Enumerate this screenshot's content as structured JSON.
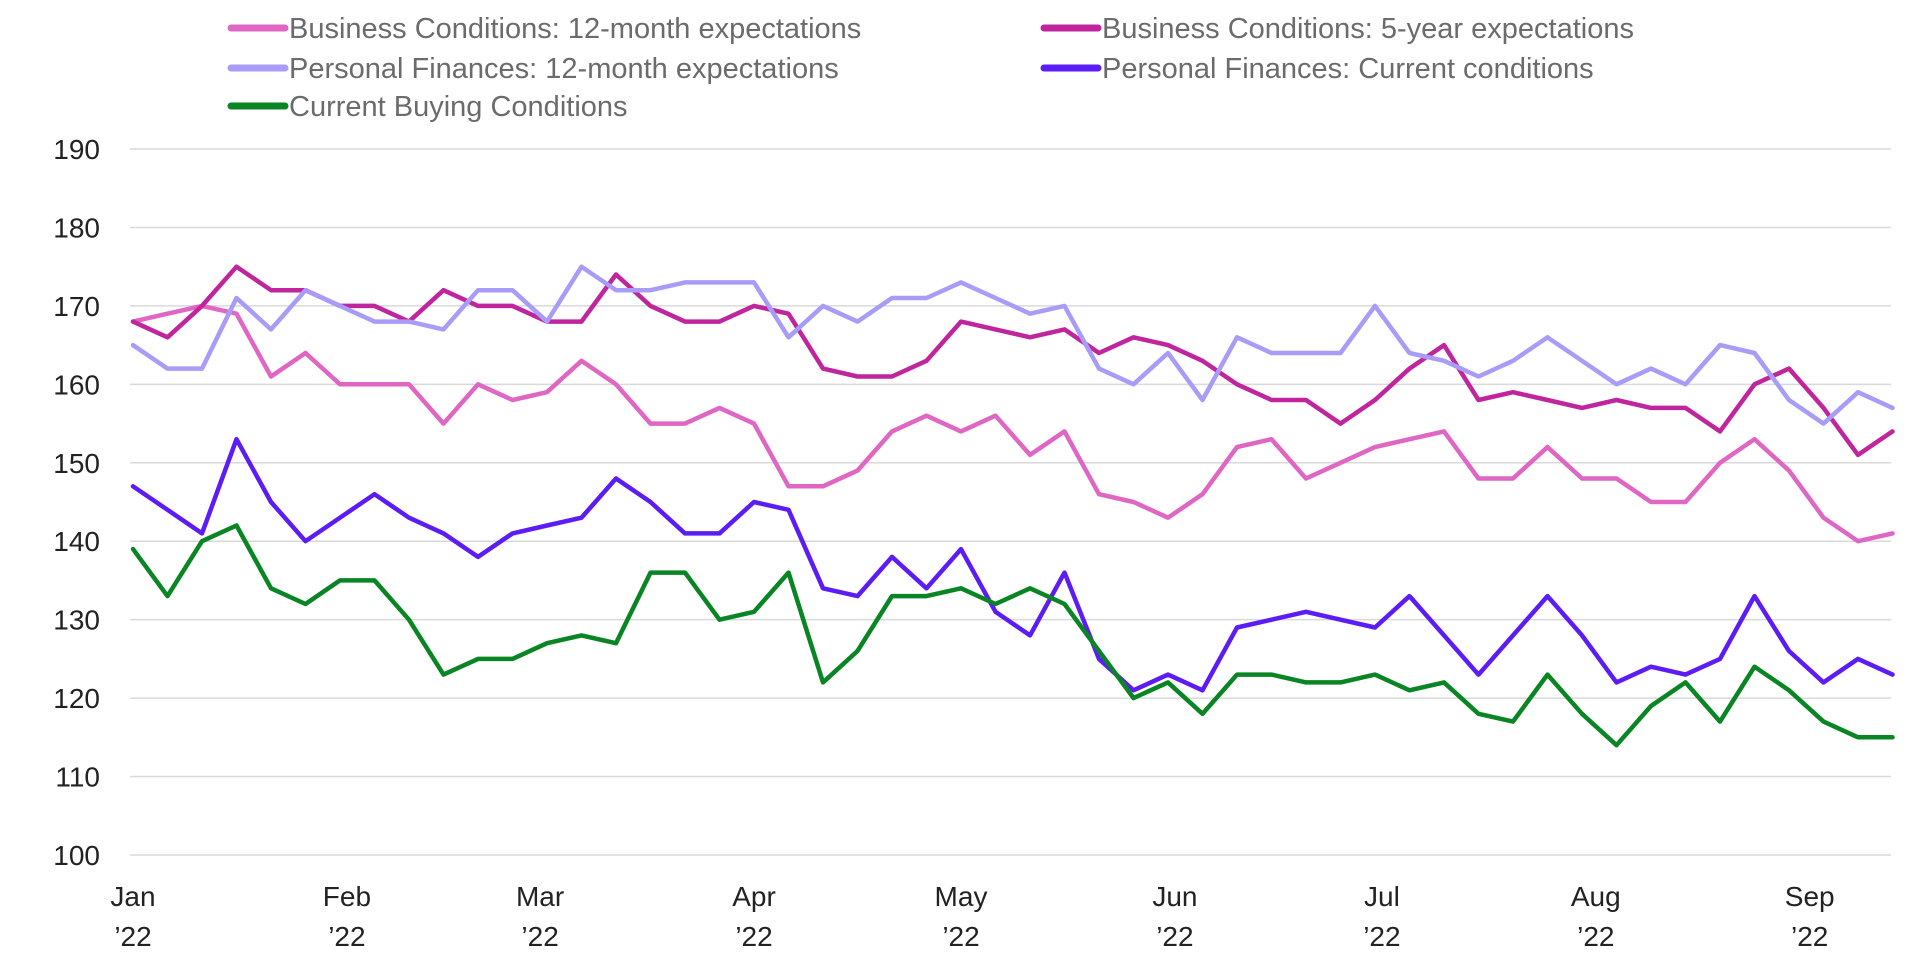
{
  "chart_data": {
    "type": "line",
    "title": "",
    "xlabel": "",
    "ylabel": "",
    "ylim": [
      100,
      190
    ],
    "yticks": [
      "100",
      "110",
      "120",
      "130",
      "140",
      "150",
      "160",
      "170",
      "180",
      "190"
    ],
    "x_unit": "day of 2022 (0 = Jan 1)",
    "xlim": [
      0,
      255
    ],
    "xticks": [
      {
        "day": 0,
        "month": "Jan",
        "year": "’22"
      },
      {
        "day": 31,
        "month": "Feb",
        "year": "’22"
      },
      {
        "day": 59,
        "month": "Mar",
        "year": "’22"
      },
      {
        "day": 90,
        "month": "Apr",
        "year": "’22"
      },
      {
        "day": 120,
        "month": "May",
        "year": "’22"
      },
      {
        "day": 151,
        "month": "Jun",
        "year": "’22"
      },
      {
        "day": 181,
        "month": "Jul",
        "year": "’22"
      },
      {
        "day": 212,
        "month": "Aug",
        "year": "’22"
      },
      {
        "day": 243,
        "month": "Sep",
        "year": "’22"
      }
    ],
    "grid": true,
    "legend_position": "top",
    "x": [
      0,
      5,
      10,
      15,
      20,
      25,
      30,
      35,
      40,
      45,
      50,
      55,
      60,
      65,
      70,
      75,
      80,
      85,
      90,
      95,
      100,
      105,
      110,
      115,
      120,
      125,
      130,
      135,
      140,
      145,
      150,
      155,
      160,
      165,
      170,
      175,
      180,
      185,
      190,
      195,
      200,
      205,
      210,
      215,
      220,
      225,
      230,
      235,
      240,
      245,
      250,
      255
    ],
    "series": [
      {
        "name": "Business Conditions: 12-month expectations",
        "color": "#e066c4",
        "values": [
          168,
          169,
          170,
          169,
          161,
          164,
          160,
          160,
          160,
          155,
          160,
          158,
          159,
          163,
          160,
          155,
          155,
          157,
          155,
          147,
          147,
          149,
          154,
          156,
          154,
          156,
          151,
          154,
          146,
          145,
          143,
          146,
          152,
          153,
          148,
          150,
          152,
          153,
          154,
          148,
          148,
          152,
          148,
          148,
          145,
          145,
          150,
          153,
          149,
          143,
          140,
          141
        ]
      },
      {
        "name": "Business Conditions: 5-year expectations",
        "color": "#c0259e",
        "values": [
          168,
          166,
          170,
          175,
          172,
          172,
          170,
          170,
          168,
          172,
          170,
          170,
          168,
          168,
          174,
          170,
          168,
          168,
          170,
          169,
          162,
          161,
          161,
          163,
          168,
          167,
          166,
          167,
          164,
          166,
          165,
          163,
          160,
          158,
          158,
          155,
          158,
          162,
          165,
          158,
          159,
          158,
          157,
          158,
          157,
          157,
          154,
          160,
          162,
          157,
          151,
          154
        ]
      },
      {
        "name": "Personal Finances: 12-month expectations",
        "color": "#a89cf8",
        "values": [
          165,
          162,
          162,
          171,
          167,
          172,
          170,
          168,
          168,
          167,
          172,
          172,
          168,
          175,
          172,
          172,
          173,
          173,
          173,
          166,
          170,
          168,
          171,
          171,
          173,
          171,
          169,
          170,
          162,
          160,
          164,
          158,
          166,
          164,
          164,
          164,
          170,
          164,
          163,
          161,
          163,
          166,
          163,
          160,
          162,
          160,
          165,
          164,
          158,
          155,
          159,
          157
        ]
      },
      {
        "name": "Personal Finances: Current conditions",
        "color": "#5b1cf5",
        "values": [
          147,
          144,
          141,
          153,
          145,
          140,
          143,
          146,
          143,
          141,
          138,
          141,
          142,
          143,
          148,
          145,
          141,
          141,
          145,
          144,
          134,
          133,
          138,
          134,
          139,
          131,
          128,
          136,
          125,
          121,
          123,
          121,
          129,
          130,
          131,
          130,
          129,
          133,
          128,
          123,
          128,
          133,
          128,
          122,
          124,
          123,
          125,
          133,
          126,
          122,
          125,
          123
        ]
      },
      {
        "name": "Current Buying Conditions",
        "color": "#0a8524",
        "values": [
          139,
          133,
          140,
          142,
          134,
          132,
          135,
          135,
          130,
          123,
          125,
          125,
          127,
          128,
          127,
          136,
          136,
          130,
          131,
          136,
          122,
          126,
          133,
          133,
          134,
          132,
          134,
          132,
          126,
          120,
          122,
          118,
          123,
          123,
          122,
          122,
          123,
          121,
          122,
          118,
          117,
          123,
          118,
          114,
          119,
          122,
          117,
          124,
          121,
          117,
          115,
          115
        ]
      }
    ]
  }
}
